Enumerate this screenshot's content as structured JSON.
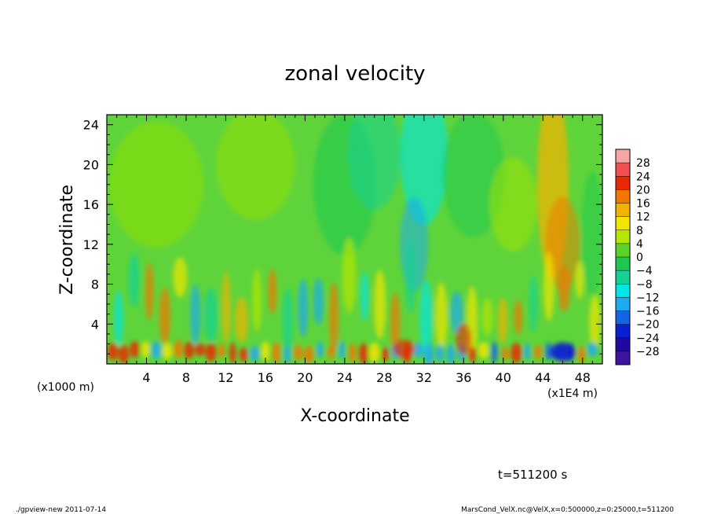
{
  "chart_data": {
    "type": "heatmap",
    "title": "zonal velocity",
    "xlabel": "X-coordinate",
    "ylabel": "Z-coordinate",
    "x_unit_left": "(x1000 m)",
    "x_unit_right": "(x1E4 m)",
    "xlim": [
      0,
      50
    ],
    "ylim": [
      0,
      25
    ],
    "x_ticks": [
      4,
      8,
      12,
      16,
      20,
      24,
      28,
      32,
      36,
      40,
      44,
      48
    ],
    "y_ticks": [
      4,
      8,
      12,
      16,
      20,
      24
    ],
    "colorbar_levels": [
      28,
      24,
      20,
      16,
      12,
      8,
      4,
      0,
      -4,
      -8,
      -12,
      -16,
      -20,
      -24,
      -28
    ],
    "colorbar_colors": [
      "#f7a4a4",
      "#f05050",
      "#e82800",
      "#f07800",
      "#f0b400",
      "#f0e600",
      "#b4e600",
      "#5ad228",
      "#1ec850",
      "#14d296",
      "#00e6e6",
      "#1eaaf0",
      "#1464e6",
      "#0a1ed2",
      "#1e0aa0",
      "#3c14a0"
    ],
    "annotation": "t=511200 s"
  },
  "footer": {
    "left": "./gpview-new   2011-07-14",
    "right": "MarsCond_VelX.nc@VelX,x=0:500000,z=0:25000,t=511200"
  }
}
